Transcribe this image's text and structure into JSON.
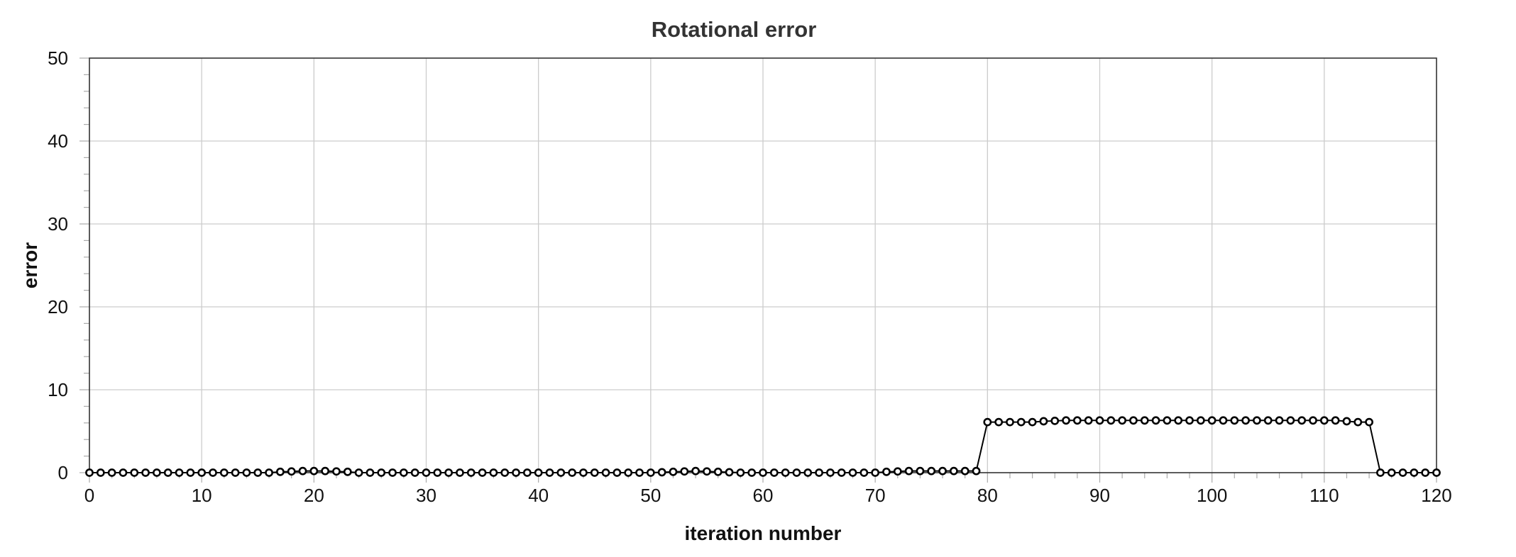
{
  "chart_data": {
    "type": "line",
    "title": "Rotational error",
    "xlabel": "iteration number",
    "ylabel": "error",
    "xlim": [
      0,
      120
    ],
    "ylim": [
      0,
      50
    ],
    "xticks": [
      0,
      10,
      20,
      30,
      40,
      50,
      60,
      70,
      80,
      90,
      100,
      110,
      120
    ],
    "yticks": [
      0,
      10,
      20,
      30,
      40,
      50
    ],
    "grid": true,
    "legend": "none",
    "series": [
      {
        "color": "#000000",
        "marker": "circle",
        "x": [
          0,
          1,
          2,
          3,
          4,
          5,
          6,
          7,
          8,
          9,
          10,
          11,
          12,
          13,
          14,
          15,
          16,
          17,
          18,
          19,
          20,
          21,
          22,
          23,
          24,
          25,
          26,
          27,
          28,
          29,
          30,
          31,
          32,
          33,
          34,
          35,
          36,
          37,
          38,
          39,
          40,
          41,
          42,
          43,
          44,
          45,
          46,
          47,
          48,
          49,
          50,
          51,
          52,
          53,
          54,
          55,
          56,
          57,
          58,
          59,
          60,
          61,
          62,
          63,
          64,
          65,
          66,
          67,
          68,
          69,
          70,
          71,
          72,
          73,
          74,
          75,
          76,
          77,
          78,
          79,
          80,
          81,
          82,
          83,
          84,
          85,
          86,
          87,
          88,
          89,
          90,
          91,
          92,
          93,
          94,
          95,
          96,
          97,
          98,
          99,
          100,
          101,
          102,
          103,
          104,
          105,
          106,
          107,
          108,
          109,
          110,
          111,
          112,
          113,
          114,
          115,
          116,
          117,
          118,
          119,
          120
        ],
        "y": [
          0,
          0,
          0,
          0,
          0,
          0,
          0,
          0,
          0,
          0,
          0,
          0,
          0,
          0,
          0,
          0,
          0,
          0.1,
          0.15,
          0.2,
          0.2,
          0.2,
          0.15,
          0.1,
          0,
          0,
          0,
          0,
          0,
          0,
          0,
          0,
          0,
          0,
          0,
          0,
          0,
          0,
          0,
          0,
          0,
          0,
          0,
          0,
          0,
          0,
          0,
          0,
          0,
          0,
          0,
          0.05,
          0.1,
          0.15,
          0.2,
          0.15,
          0.1,
          0.05,
          0,
          0,
          0,
          0,
          0,
          0,
          0,
          0,
          0,
          0,
          0,
          0,
          0,
          0.1,
          0.15,
          0.2,
          0.2,
          0.2,
          0.2,
          0.2,
          0.2,
          0.2,
          6.1,
          6.1,
          6.1,
          6.1,
          6.1,
          6.2,
          6.25,
          6.3,
          6.3,
          6.3,
          6.3,
          6.3,
          6.3,
          6.3,
          6.3,
          6.3,
          6.3,
          6.3,
          6.3,
          6.3,
          6.3,
          6.3,
          6.3,
          6.3,
          6.3,
          6.3,
          6.3,
          6.3,
          6.3,
          6.3,
          6.3,
          6.3,
          6.2,
          6.1,
          6.1,
          0,
          0,
          0,
          0,
          0,
          0
        ]
      }
    ]
  }
}
